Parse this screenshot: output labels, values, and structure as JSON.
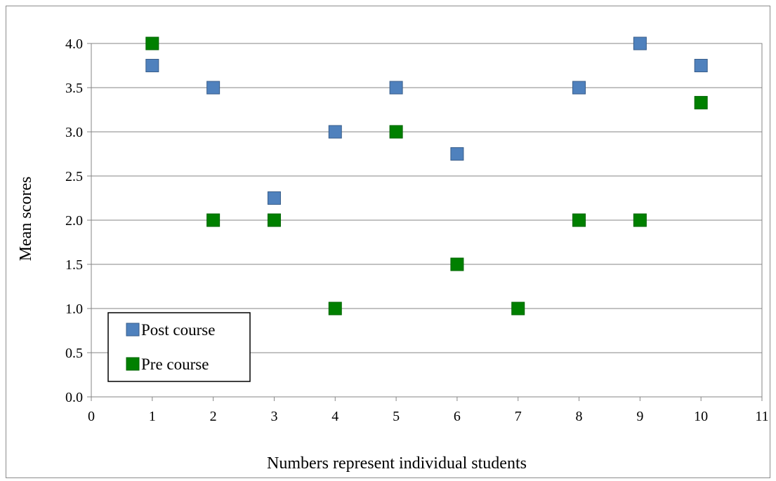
{
  "chart_data": {
    "type": "scatter",
    "title": "",
    "xlabel": "Numbers represent individual students",
    "ylabel": "Mean scores",
    "xlim": [
      0,
      11
    ],
    "ylim": [
      0.0,
      4.0
    ],
    "x_ticks": [
      "0",
      "1",
      "2",
      "3",
      "4",
      "5",
      "6",
      "7",
      "8",
      "9",
      "10",
      "11"
    ],
    "y_ticks": [
      "0.0",
      "0.5",
      "1.0",
      "1.5",
      "2.0",
      "2.5",
      "3.0",
      "3.5",
      "4.0"
    ],
    "grid": "horizontal",
    "legend_position": "bottom-left",
    "series": [
      {
        "name": "Post course",
        "color": "#4f81bd",
        "edge_color": "#385d8a",
        "marker": "square",
        "points": [
          {
            "x": 1,
            "y": 3.75
          },
          {
            "x": 2,
            "y": 3.5
          },
          {
            "x": 3,
            "y": 2.25
          },
          {
            "x": 4,
            "y": 3.0
          },
          {
            "x": 5,
            "y": 3.5
          },
          {
            "x": 6,
            "y": 2.75
          },
          {
            "x": 8,
            "y": 3.5
          },
          {
            "x": 9,
            "y": 4.0
          },
          {
            "x": 10,
            "y": 3.75
          }
        ]
      },
      {
        "name": "Pre course",
        "color": "#008000",
        "edge_color": "#006400",
        "marker": "square",
        "points": [
          {
            "x": 1,
            "y": 4.0
          },
          {
            "x": 2,
            "y": 2.0
          },
          {
            "x": 3,
            "y": 2.0
          },
          {
            "x": 4,
            "y": 1.0
          },
          {
            "x": 5,
            "y": 3.0
          },
          {
            "x": 6,
            "y": 1.5
          },
          {
            "x": 7,
            "y": 1.0
          },
          {
            "x": 8,
            "y": 2.0
          },
          {
            "x": 9,
            "y": 2.0
          },
          {
            "x": 10,
            "y": 3.33
          }
        ]
      }
    ]
  }
}
